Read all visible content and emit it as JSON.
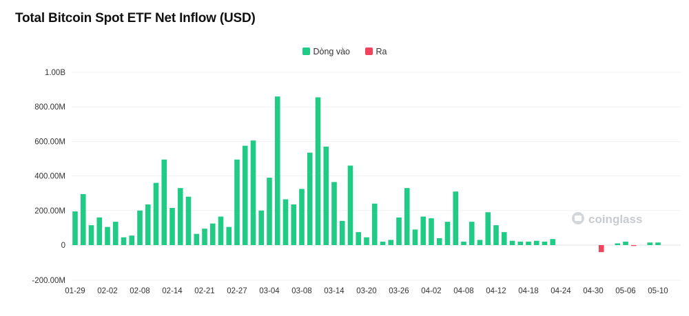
{
  "chart_data": {
    "type": "bar",
    "title": "Total Bitcoin Spot ETF Net Inflow (USD)",
    "xlabel": "",
    "ylabel": "",
    "ylim": [
      -200000000,
      1000000000
    ],
    "y_ticks": [
      {
        "value": 1000000000,
        "label": "1.00B"
      },
      {
        "value": 800000000,
        "label": "800.00M"
      },
      {
        "value": 600000000,
        "label": "600.00M"
      },
      {
        "value": 400000000,
        "label": "400.00M"
      },
      {
        "value": 200000000,
        "label": "200.00M"
      },
      {
        "value": 0,
        "label": "0"
      },
      {
        "value": -200000000,
        "label": "-200.00M"
      }
    ],
    "x_tick_labels": [
      {
        "index": 0,
        "label": "01-29"
      },
      {
        "index": 4,
        "label": "02-02"
      },
      {
        "index": 8,
        "label": "02-08"
      },
      {
        "index": 12,
        "label": "02-14"
      },
      {
        "index": 16,
        "label": "02-21"
      },
      {
        "index": 20,
        "label": "02-27"
      },
      {
        "index": 24,
        "label": "03-04"
      },
      {
        "index": 28,
        "label": "03-08"
      },
      {
        "index": 32,
        "label": "03-14"
      },
      {
        "index": 36,
        "label": "03-20"
      },
      {
        "index": 40,
        "label": "03-26"
      },
      {
        "index": 44,
        "label": "04-02"
      },
      {
        "index": 48,
        "label": "04-08"
      },
      {
        "index": 52,
        "label": "04-12"
      },
      {
        "index": 56,
        "label": "04-18"
      },
      {
        "index": 60,
        "label": "04-24"
      },
      {
        "index": 64,
        "label": "04-30"
      },
      {
        "index": 68,
        "label": "05-06"
      },
      {
        "index": 72,
        "label": "05-10"
      }
    ],
    "legend": {
      "position": "top-center",
      "items": [
        {
          "name": "Dòng vào",
          "color": "#1fcb85"
        },
        {
          "name": "Ra",
          "color": "#f0435d"
        }
      ]
    },
    "colors": {
      "positive": "#1fcb85",
      "negative": "#f0435d"
    },
    "grid": true,
    "values": [
      195000000,
      295000000,
      115000000,
      160000000,
      105000000,
      135000000,
      45000000,
      55000000,
      200000000,
      235000000,
      360000000,
      495000000,
      215000000,
      330000000,
      280000000,
      65000000,
      95000000,
      125000000,
      165000000,
      105000000,
      495000000,
      575000000,
      605000000,
      200000000,
      390000000,
      860000000,
      265000000,
      235000000,
      325000000,
      535000000,
      855000000,
      570000000,
      365000000,
      140000000,
      460000000,
      75000000,
      45000000,
      240000000,
      20000000,
      30000000,
      160000000,
      330000000,
      90000000,
      165000000,
      155000000,
      40000000,
      135000000,
      310000000,
      20000000,
      135000000,
      30000000,
      190000000,
      115000000,
      75000000,
      25000000,
      20000000,
      20000000,
      25000000,
      20000000,
      35000000,
      0,
      0,
      0,
      0,
      0,
      -40000000,
      0,
      10000000,
      20000000,
      -5000000,
      0,
      15000000,
      15000000,
      0
    ]
  },
  "watermark": {
    "text": "coinglass",
    "icon": "coinglass-logo-icon"
  }
}
